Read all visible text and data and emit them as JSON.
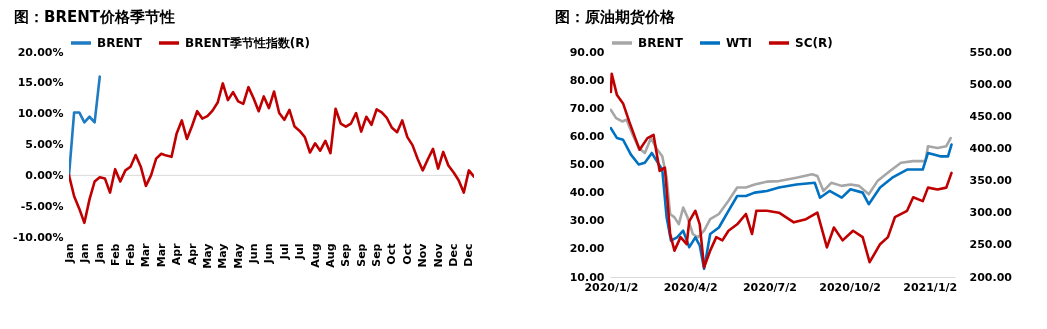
{
  "chart_data": [
    {
      "type": "line",
      "title": "图：BRENT价格季节性",
      "legend": "top",
      "ylim": [
        -10,
        20
      ],
      "yticks": [
        {
          "value": -10,
          "label": "-10.00%"
        },
        {
          "value": -5,
          "label": "-5.00%"
        },
        {
          "value": 0,
          "label": "0.00%"
        },
        {
          "value": 5,
          "label": "5.00%"
        },
        {
          "value": 10,
          "label": "10.00%"
        },
        {
          "value": 15,
          "label": "15.00%"
        },
        {
          "value": 20,
          "label": "20.00%"
        }
      ],
      "ref_lines": [
        {
          "axis": "y",
          "value": 0,
          "label": null,
          "color": "#d9d9d9"
        }
      ],
      "categories": [
        "Jan",
        null,
        null,
        "Jan",
        null,
        null,
        "Jan",
        null,
        null,
        "Feb",
        null,
        null,
        "Feb",
        null,
        null,
        "Mar",
        null,
        null,
        "Mar",
        null,
        null,
        "Apr",
        null,
        null,
        "Apr",
        null,
        null,
        "May",
        null,
        null,
        "May",
        null,
        null,
        "May",
        null,
        null,
        "Jun",
        null,
        null,
        "Jun",
        null,
        null,
        "Jul",
        null,
        null,
        "Jul",
        null,
        null,
        "Aug",
        null,
        null,
        "Aug",
        null,
        null,
        "Sep",
        null,
        null,
        "Sep",
        null,
        null,
        "Sep",
        null,
        null,
        "Oct",
        null,
        null,
        "Oct",
        null,
        null,
        "Nov",
        null,
        null,
        "Nov",
        null,
        null,
        "Dec",
        null,
        null,
        "Dec",
        null
      ],
      "series": [
        {
          "name": "BRENT",
          "color": "#1f7bc2",
          "values": [
            0,
            10.2,
            10.2,
            8.6,
            9.5,
            8.6,
            16.0,
            null,
            null,
            null,
            null,
            null,
            null,
            null,
            null,
            null,
            null,
            null,
            null,
            null,
            null,
            null,
            null,
            null,
            null,
            null,
            null,
            null,
            null,
            null,
            null,
            null,
            null,
            null,
            null,
            null,
            null,
            null,
            null,
            null,
            null,
            null,
            null,
            null,
            null,
            null,
            null,
            null,
            null,
            null,
            null,
            null,
            null,
            null,
            null,
            null,
            null,
            null,
            null,
            null,
            null,
            null,
            null,
            null,
            null,
            null,
            null,
            null,
            null,
            null,
            null,
            null,
            null,
            null,
            null,
            null,
            null,
            null,
            null,
            null
          ]
        },
        {
          "name": "BRENT季节性指数(R)",
          "color": "#c00000",
          "values": [
            0,
            -3.4,
            -5.4,
            -7.7,
            -3.9,
            -1.0,
            -0.3,
            -0.5,
            -2.8,
            1.0,
            -1.0,
            0.8,
            1.4,
            3.3,
            1.4,
            -1.7,
            0,
            2.7,
            3.5,
            3.2,
            3.0,
            6.8,
            8.9,
            5.9,
            8.0,
            10.4,
            9.2,
            9.6,
            10.5,
            11.8,
            14.9,
            12.2,
            13.5,
            12.0,
            11.6,
            14.3,
            12.5,
            10.4,
            12.8,
            10.9,
            13.6,
            10.1,
            9.0,
            10.6,
            7.9,
            7.2,
            6.2,
            3.7,
            5.2,
            4.0,
            5.6,
            3.6,
            10.8,
            8.4,
            7.9,
            8.4,
            10.1,
            7.1,
            9.5,
            8.2,
            10.7,
            10.2,
            9.3,
            7.7,
            7.0,
            8.9,
            6.2,
            4.9,
            2.7,
            0.8,
            2.6,
            4.3,
            1.1,
            3.8,
            1.6,
            0.5,
            -0.8,
            -2.8,
            0.8,
            -0.2
          ]
        }
      ]
    },
    {
      "type": "line",
      "title": "图：原油期货价格",
      "legend": "top",
      "xlim": [
        "2020-01-01",
        "2021-01-31"
      ],
      "xticks": [
        {
          "value": "2020-01-02",
          "label": "2020/1/2"
        },
        {
          "value": "2020-04-02",
          "label": "2020/4/2"
        },
        {
          "value": "2020-07-02",
          "label": "2020/7/2"
        },
        {
          "value": "2020-10-02",
          "label": "2020/10/2"
        },
        {
          "value": "2021-01-02",
          "label": "2021/1/2"
        }
      ],
      "ylim": [
        10,
        90
      ],
      "yticks": [
        {
          "value": 10,
          "label": "10.00"
        },
        {
          "value": 20,
          "label": "20.00"
        },
        {
          "value": 30,
          "label": "30.00"
        },
        {
          "value": 40,
          "label": "40.00"
        },
        {
          "value": 50,
          "label": "50.00"
        },
        {
          "value": 60,
          "label": "60.00"
        },
        {
          "value": 70,
          "label": "70.00"
        },
        {
          "value": 80,
          "label": "80.00"
        },
        {
          "value": 90,
          "label": "90.00"
        }
      ],
      "y2lim": [
        200,
        550
      ],
      "y2ticks": [
        {
          "value": 200,
          "label": "200.00"
        },
        {
          "value": 250,
          "label": "250.00"
        },
        {
          "value": 300,
          "label": "300.00"
        },
        {
          "value": 350,
          "label": "350.00"
        },
        {
          "value": 400,
          "label": "400.00"
        },
        {
          "value": 450,
          "label": "450.00"
        },
        {
          "value": 500,
          "label": "500.00"
        },
        {
          "value": 550,
          "label": "550.00"
        }
      ],
      "series": [
        {
          "name": "BRENT",
          "color": "#a6a6a6",
          "x": [
            "2020-01-02",
            "2020-01-08",
            "2020-01-15",
            "2020-01-20",
            "2020-01-27",
            "2020-02-03",
            "2020-02-10",
            "2020-02-17",
            "2020-02-23",
            "2020-03-01",
            "2020-03-06",
            "2020-03-10",
            "2020-03-15",
            "2020-03-20",
            "2020-03-25",
            "2020-03-30",
            "2020-04-05",
            "2020-04-11",
            "2020-04-18",
            "2020-04-25",
            "2020-05-05",
            "2020-05-16",
            "2020-05-26",
            "2020-06-05",
            "2020-06-15",
            "2020-06-29",
            "2020-07-13",
            "2020-08-02",
            "2020-08-20",
            "2020-08-26",
            "2020-09-02",
            "2020-09-11",
            "2020-09-23",
            "2020-10-03",
            "2020-10-13",
            "2020-10-24",
            "2020-11-03",
            "2020-11-17",
            "2020-11-30",
            "2020-12-14",
            "2020-12-28",
            "2020-12-31",
            "2021-01-11",
            "2021-01-21",
            "2021-01-26"
          ],
          "values": [
            69.4,
            66.5,
            65.3,
            65.9,
            60.6,
            55.9,
            54.1,
            59.4,
            55.9,
            52.9,
            45.3,
            32.4,
            31.2,
            28.8,
            34.7,
            31.2,
            25.3,
            24.1,
            26.5,
            30.6,
            32.4,
            37.1,
            41.8,
            41.8,
            42.9,
            43.9,
            44.1,
            45.3,
            46.5,
            45.9,
            40.6,
            43.5,
            42.4,
            42.9,
            42.4,
            39.4,
            44.1,
            47.6,
            50.6,
            51.2,
            51.2,
            56.5,
            55.9,
            56.5,
            59.4
          ]
        },
        {
          "name": "WTI",
          "color": "#0070c0",
          "x": [
            "2020-01-02",
            "2020-01-09",
            "2020-01-16",
            "2020-01-25",
            "2020-02-03",
            "2020-02-10",
            "2020-02-18",
            "2020-02-25",
            "2020-03-01",
            "2020-03-06",
            "2020-03-11",
            "2020-03-18",
            "2020-03-25",
            "2020-04-01",
            "2020-04-08",
            "2020-04-13",
            "2020-04-18",
            "2020-04-25",
            "2020-05-05",
            "2020-05-16",
            "2020-05-26",
            "2020-06-05",
            "2020-06-15",
            "2020-06-29",
            "2020-07-13",
            "2020-08-02",
            "2020-08-23",
            "2020-08-29",
            "2020-09-09",
            "2020-09-23",
            "2020-10-03",
            "2020-10-17",
            "2020-10-24",
            "2020-11-06",
            "2020-11-20",
            "2020-12-07",
            "2020-12-25",
            "2020-12-31",
            "2021-01-14",
            "2021-01-23",
            "2021-01-27"
          ],
          "values": [
            62.9,
            59.4,
            58.8,
            53.5,
            50.0,
            50.6,
            54.1,
            50.6,
            48.2,
            31.2,
            22.9,
            24.1,
            26.5,
            20.6,
            24.1,
            21.2,
            12.9,
            25.3,
            27.6,
            33.5,
            38.8,
            38.8,
            40.0,
            40.6,
            41.8,
            42.9,
            43.5,
            38.2,
            40.6,
            38.2,
            41.2,
            40.0,
            35.9,
            41.8,
            45.3,
            48.2,
            48.2,
            54.1,
            52.9,
            52.9,
            57.1
          ]
        },
        {
          "name": "SC(R)",
          "color": "#c00000",
          "axis": "y2",
          "x": [
            "2020-01-02",
            "2020-01-03",
            "2020-01-09",
            "2020-01-16",
            "2020-01-23",
            "2020-01-30",
            "2020-02-04",
            "2020-02-13",
            "2020-02-20",
            "2020-02-27",
            "2020-03-04",
            "2020-03-10",
            "2020-03-15",
            "2020-03-22",
            "2020-03-29",
            "2020-04-01",
            "2020-04-08",
            "2020-04-13",
            "2020-04-18",
            "2020-04-25",
            "2020-05-02",
            "2020-05-09",
            "2020-05-16",
            "2020-05-26",
            "2020-06-05",
            "2020-06-12",
            "2020-06-17",
            "2020-06-29",
            "2020-07-13",
            "2020-07-30",
            "2020-08-13",
            "2020-08-26",
            "2020-09-06",
            "2020-09-14",
            "2020-09-24",
            "2020-10-06",
            "2020-10-17",
            "2020-10-25",
            "2020-11-06",
            "2020-11-15",
            "2020-11-23",
            "2020-12-07",
            "2020-12-14",
            "2020-12-25",
            "2020-12-31",
            "2021-01-11",
            "2021-01-21",
            "2021-01-27"
          ],
          "values": [
            488,
            516,
            483,
            470,
            442,
            416,
            398,
            416,
            421,
            365,
            370,
            267,
            241,
            262,
            251,
            287,
            303,
            282,
            215,
            241,
            262,
            257,
            272,
            282,
            298,
            267,
            303,
            303,
            300,
            285,
            290,
            300,
            246,
            277,
            257,
            272,
            262,
            223,
            251,
            262,
            293,
            303,
            324,
            318,
            339,
            336,
            339,
            362
          ]
        }
      ]
    }
  ]
}
